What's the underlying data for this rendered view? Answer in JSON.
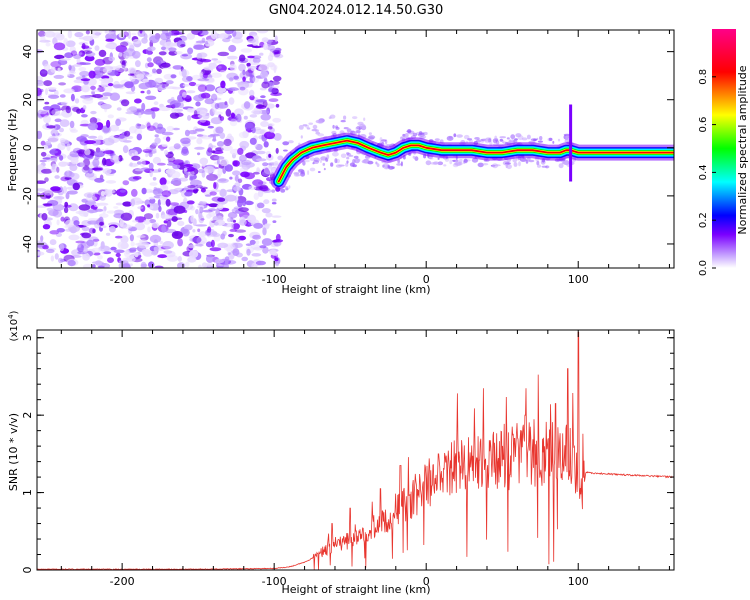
{
  "figure": {
    "title": "GN04.2024.012.14.50.G30"
  },
  "colors": {
    "signal_line": "#e8352e",
    "axis": "#000000",
    "background": "#ffffff"
  },
  "chart_data": [
    {
      "type": "heatmap",
      "title": "",
      "xlabel": "Height of straight line (km)",
      "ylabel": "Frequency (Hz)",
      "xlim": [
        -256,
        163
      ],
      "ylim": [
        -50,
        49
      ],
      "x_ticks": [
        -200,
        -100,
        0,
        100
      ],
      "y_ticks": [
        -40,
        -20,
        0,
        20,
        40
      ],
      "colorbar": {
        "label": "Normalized spectral amplitude",
        "range": [
          0,
          1
        ],
        "ticks": [
          0.0,
          0.2,
          0.4,
          0.6,
          0.8
        ],
        "colormap": [
          "#ffffff",
          "#7b00ff",
          "#0000ff",
          "#00ffff",
          "#00ff00",
          "#ffff00",
          "#ff0000",
          "#ff0088"
        ]
      },
      "signal_track": {
        "x": [
          -97,
          -92,
          -88,
          -82,
          -75,
          -68,
          -60,
          -52,
          -45,
          -38,
          -30,
          -25,
          -20,
          -15,
          -10,
          -5,
          0,
          10,
          20,
          30,
          40,
          50,
          60,
          70,
          80,
          88,
          92,
          95,
          100,
          120,
          140,
          163
        ],
        "freq": [
          -14,
          -8,
          -5,
          -2,
          0,
          1,
          2,
          3,
          2,
          0,
          -2,
          -3,
          -2,
          0,
          1,
          1,
          0,
          -1,
          -1,
          -1,
          -2,
          -2,
          -1,
          -1,
          -2,
          -2,
          -1,
          -1,
          -2,
          -2,
          -2,
          -2
        ]
      }
    },
    {
      "type": "line",
      "title": "",
      "xlabel": "Height of straight line (km)",
      "ylabel": "SNR (10 * v/v)",
      "y_multiplier": "(x10",
      "y_multiplier_exp": "4",
      "y_multiplier_close": ")",
      "xlim": [
        -256,
        163
      ],
      "ylim": [
        0,
        3.1
      ],
      "x_ticks": [
        -200,
        -100,
        0,
        100
      ],
      "y_ticks": [
        0,
        1,
        2,
        3
      ],
      "envelope": {
        "x": [
          -256,
          -150,
          -100,
          -90,
          -80,
          -70,
          -60,
          -50,
          -40,
          -30,
          -20,
          -10,
          0,
          10,
          20,
          30,
          40,
          50,
          60,
          70,
          80,
          90,
          95,
          100,
          103,
          105,
          110,
          130,
          163
        ],
        "y": [
          0.01,
          0.01,
          0.02,
          0.04,
          0.1,
          0.2,
          0.3,
          0.35,
          0.45,
          0.55,
          0.7,
          0.85,
          1.0,
          1.1,
          1.2,
          1.25,
          1.3,
          1.3,
          1.35,
          1.4,
          1.35,
          1.35,
          1.3,
          1.2,
          1.0,
          1.26,
          1.25,
          1.23,
          1.2
        ]
      },
      "peaks": [
        {
          "x": -62,
          "y": 0.6
        },
        {
          "x": -50,
          "y": 0.8
        },
        {
          "x": -30,
          "y": 1.05
        },
        {
          "x": -17,
          "y": 1.35
        },
        {
          "x": 8,
          "y": 1.5
        },
        {
          "x": 35,
          "y": 1.42
        },
        {
          "x": 58,
          "y": 1.7
        },
        {
          "x": 65,
          "y": 2.0
        },
        {
          "x": 85,
          "y": 2.15
        },
        {
          "x": 93,
          "y": 2.6
        },
        {
          "x": 100,
          "y": 3.07
        }
      ]
    }
  ]
}
